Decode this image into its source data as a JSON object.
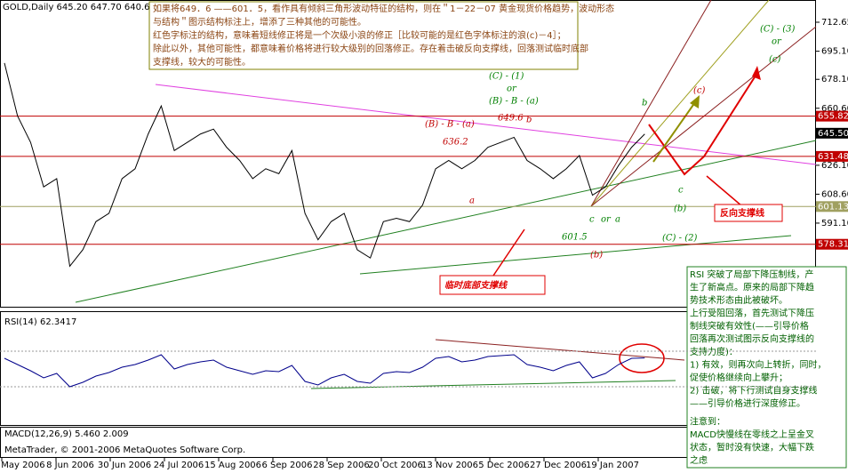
{
  "header": "GOLD,Daily  645.20 647.70 640.60 645.50",
  "chart_data": [
    {
      "type": "line",
      "title": "GOLD,Daily",
      "color": "#000000",
      "values": [
        688,
        656,
        640,
        613,
        618,
        565,
        575,
        592,
        597,
        618,
        624,
        645,
        662,
        635,
        640,
        645,
        648,
        637,
        629,
        618,
        624,
        621,
        635,
        597,
        581,
        592,
        597,
        575,
        570,
        592,
        594,
        592,
        602,
        624,
        629,
        624,
        629,
        637,
        640,
        643,
        629,
        624,
        618,
        624,
        632,
        608,
        613,
        626,
        637,
        645
      ],
      "ylim": [
        540.5,
        726.1
      ],
      "yticks": [
        712.65,
        {
          "value": 695.1,
          "label": "695.10"
        },
        {
          "value": 678.1,
          "label": "678.10"
        },
        {
          "value": 660.6,
          "label": "660.60"
        },
        {
          "value": 626.1,
          "label": "626.10"
        },
        {
          "value": 608.6,
          "label": "608.60"
        },
        {
          "value": 591.1,
          "label": "591.10"
        }
      ],
      "levels": [
        {
          "value": 655.82,
          "color": "#c00000"
        },
        {
          "value": 631.48,
          "color": "#c00000"
        },
        {
          "value": 601.13,
          "color": "#a0a060"
        },
        {
          "value": 578.31,
          "color": "#c00000"
        }
      ],
      "current": {
        "value": 645.5,
        "label": "645.50"
      },
      "x_labels": [
        "16 May 2006",
        "8 Jun 2006",
        "30 Jun 2006",
        "24 Jul 2006",
        "15 Aug 2006",
        "6 Sep 2006",
        "28 Sep 2006",
        "20 Oct 2006",
        "13 Nov 2006",
        "5 Dec 2006",
        "27 Dec 2006",
        "19 Jan 2007"
      ]
    },
    {
      "type": "line",
      "title": "RSI(14) 62.3417",
      "color": "#00008b",
      "values": [
        62,
        55,
        48,
        40,
        45,
        30,
        35,
        42,
        46,
        52,
        55,
        60,
        66,
        50,
        55,
        58,
        60,
        52,
        48,
        44,
        48,
        47,
        54,
        36,
        32,
        40,
        44,
        36,
        34,
        45,
        47,
        46,
        52,
        62,
        64,
        58,
        60,
        64,
        65,
        66,
        55,
        52,
        48,
        54,
        58,
        40,
        45,
        55,
        62,
        62.3417
      ],
      "ylim": [
        0,
        100
      ],
      "levels": [
        30,
        70
      ]
    },
    {
      "type": "histogram",
      "title": "MACD(12,26,9) 5.460 2.009"
    }
  ],
  "chart_labels": [
    "(C) - (3)",
    "or",
    "(c)",
    "(C) - (1)",
    "or",
    "(B) - B - (a)",
    "(B) - B - (a)",
    "649.6",
    "b",
    "636.2",
    "a",
    "b",
    "(c)",
    "c",
    "(b)",
    "c",
    "or",
    "a",
    "601.5",
    "(C) - (2)",
    "(b)",
    "反向支撑线",
    "临时底部支撑线"
  ],
  "top_box": [
    "如果将649．6 ——601．5，看作具有倾斜三角形波动特征的结构，则在＂1－22－07 黄金现货价格趋势，波动形态",
    "与结构＂图示结构标注上，增添了三种其他的可能性。",
    "红色字标注的结构，意味着短线修正将是一个次级小浪的修正［比较可能的是红色字体标注的浪(c)－4］；",
    "除此以外，其他可能性，都意味着价格将进行较大级别的回落修正。存在着击破反向支撑线，回落测试临时底部",
    "支撑线，较大的可能性。"
  ],
  "right_box": [
    "RSI 突破了局部下降压制线，产",
    "生了新高点。原来的局部下降趋",
    "势技术形态由此被破坏。",
    "上行受阻回落，首先测试下降压",
    "制线突破有效性(——引导价格",
    "回落再次测试图示反向支撑线的",
    "支持力度)：",
    "1) 有效，则再次向上转折，同时，",
    "促使价格继续向上攀升；",
    "2) 击破，将下行测试自身支撑线",
    "——引导价格进行深度修正。",
    "注意到：",
    "MACD快慢线在零线之上呈金叉",
    "状态，暂时没有快速，大幅下跌",
    "之虑"
  ],
  "footer": "MetaTrader, © 2001-2006 MetaQuotes Software Corp."
}
